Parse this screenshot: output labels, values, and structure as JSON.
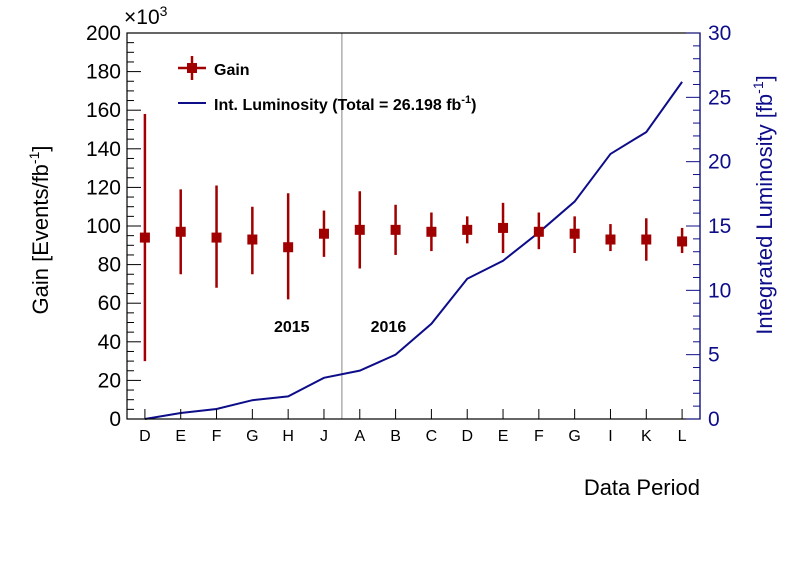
{
  "chart_data": {
    "type": "scatter",
    "y_multiplier_label": "×10",
    "y_multiplier_exp": "3",
    "ylabel": "Gain [Events/fb",
    "ylabel_sup": "-1",
    "ylabel_end": "]",
    "y2label": "Integrated Luminosity [fb",
    "y2label_sup": "-1",
    "y2label_end": "]",
    "xlabel": "Data Period",
    "ylim": [
      0,
      200
    ],
    "y2lim": [
      0,
      30
    ],
    "y_ticks": [
      0,
      20,
      40,
      60,
      80,
      100,
      120,
      140,
      160,
      180,
      200
    ],
    "y2_ticks": [
      0,
      5,
      10,
      15,
      20,
      25,
      30
    ],
    "categories": [
      "D",
      "E",
      "F",
      "G",
      "H",
      "J",
      "A",
      "B",
      "C",
      "D",
      "E",
      "F",
      "G",
      "I",
      "K",
      "L"
    ],
    "year_labels": [
      {
        "text": "2015",
        "index": 4.1
      },
      {
        "text": "2016",
        "index": 6.8
      }
    ],
    "year_divider_index": 5.5,
    "legend": {
      "placement": "top-left",
      "gain_label": "Gain",
      "lumi_label": "Int. Luminosity (Total = 26.198 fb",
      "lumi_sup": "-1",
      "lumi_end": ")"
    },
    "series": [
      {
        "name": "Gain",
        "axis": "left",
        "style": "markers-with-error-bars",
        "values": [
          94,
          97,
          94,
          93,
          89,
          96,
          98,
          98,
          97,
          98,
          99,
          97,
          96,
          93,
          93,
          92
        ],
        "err_low": [
          64,
          22,
          26,
          18,
          27,
          12,
          20,
          13,
          10,
          7,
          13,
          9,
          10,
          6,
          11,
          6
        ],
        "err_high": [
          64,
          22,
          27,
          17,
          28,
          12,
          20,
          13,
          10,
          7,
          13,
          10,
          9,
          8,
          11,
          7
        ]
      },
      {
        "name": "Int. Luminosity",
        "axis": "right",
        "style": "line",
        "values": [
          0.0,
          0.47,
          0.78,
          1.46,
          1.76,
          3.2,
          3.76,
          5.0,
          7.4,
          10.9,
          12.3,
          14.5,
          16.9,
          20.6,
          22.3,
          26.2
        ]
      }
    ],
    "colors": {
      "gain": "#a00000",
      "lumi": "#0d0d8a",
      "frame": "#000000",
      "divider": "#9a9a9a"
    }
  }
}
